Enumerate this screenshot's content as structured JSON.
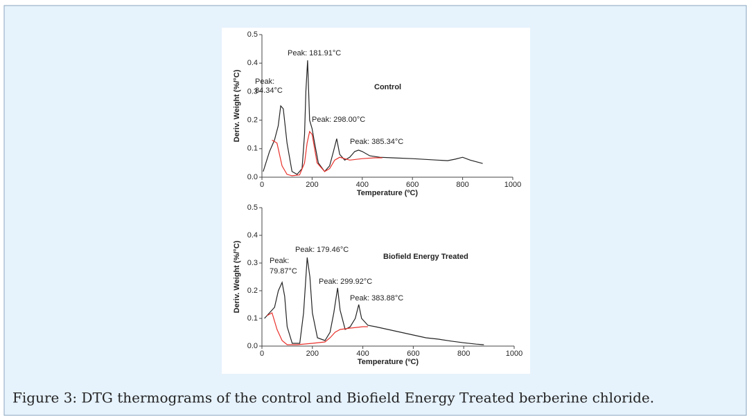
{
  "chart_data": [
    {
      "type": "line",
      "label": "Control",
      "x_label": "Temperature (ºC)",
      "y_label": "Deriv. Weight (%/°C)",
      "xlim": [
        0,
        1000
      ],
      "xticks": [
        0,
        200,
        400,
        600,
        800,
        1000
      ],
      "ylim": [
        0,
        0.5
      ],
      "yticks": [
        {
          "value": 0,
          "label": "0.0"
        },
        0.1,
        0.2,
        0.3,
        0.4,
        0.5
      ],
      "annotations": [
        [
          "Peak:",
          "84.34°C"
        ],
        [
          "Peak: 181.91°C"
        ],
        [
          "Peak: 298.00°C"
        ],
        [
          "Peak: 385.34°C"
        ]
      ],
      "series": [
        {
          "color": "#222222",
          "x": [
            5,
            30,
            50,
            65,
            75,
            85,
            100,
            120,
            140,
            160,
            170,
            175,
            182,
            190,
            200,
            210,
            225,
            250,
            270,
            285,
            298,
            310,
            330,
            350,
            370,
            385,
            400,
            430,
            470,
            520,
            600,
            700,
            740,
            770,
            800,
            830,
            880
          ],
          "values": [
            0.02,
            0.09,
            0.13,
            0.18,
            0.25,
            0.24,
            0.12,
            0.02,
            0.01,
            0.03,
            0.15,
            0.3,
            0.41,
            0.2,
            0.17,
            0.12,
            0.05,
            0.02,
            0.04,
            0.09,
            0.135,
            0.08,
            0.06,
            0.07,
            0.09,
            0.095,
            0.09,
            0.075,
            0.07,
            0.068,
            0.065,
            0.06,
            0.058,
            0.063,
            0.07,
            0.06,
            0.048
          ]
        },
        {
          "color": "#e8302a",
          "x": [
            40,
            60,
            80,
            100,
            120,
            150,
            170,
            180,
            190,
            200,
            220,
            250,
            270,
            290,
            310,
            350,
            400,
            450,
            480
          ],
          "values": [
            0.13,
            0.12,
            0.04,
            0.01,
            0.005,
            0.008,
            0.05,
            0.12,
            0.16,
            0.15,
            0.05,
            0.02,
            0.03,
            0.06,
            0.07,
            0.06,
            0.065,
            0.068,
            0.068
          ]
        }
      ]
    },
    {
      "type": "line",
      "label": "Biofield Energy Treated",
      "x_label": "Temperature (ºC)",
      "y_label": "Deriv. Weight (%/°C)",
      "xlim": [
        0,
        1000
      ],
      "xticks": [
        0,
        200,
        400,
        600,
        800,
        1000
      ],
      "ylim": [
        0,
        0.5
      ],
      "yticks": [
        {
          "value": 0,
          "label": "0.0"
        },
        0.1,
        0.2,
        0.3,
        0.4,
        0.5
      ],
      "annotations": [
        [
          "Peak:",
          "79.87°C"
        ],
        [
          "Peak: 179.46°C"
        ],
        [
          "Peak: 299.92°C"
        ],
        [
          "Peak: 383.88°C"
        ]
      ],
      "series": [
        {
          "color": "#222222",
          "x": [
            10,
            30,
            50,
            65,
            79.87,
            90,
            100,
            120,
            150,
            165,
            179.46,
            190,
            200,
            220,
            250,
            270,
            285,
            299.92,
            310,
            330,
            350,
            370,
            383.88,
            395,
            420,
            450,
            500,
            550,
            600,
            650,
            700,
            750,
            800,
            850,
            880
          ],
          "values": [
            0.1,
            0.12,
            0.14,
            0.2,
            0.23,
            0.18,
            0.07,
            0.01,
            0.01,
            0.12,
            0.32,
            0.25,
            0.12,
            0.03,
            0.02,
            0.05,
            0.12,
            0.21,
            0.13,
            0.06,
            0.07,
            0.1,
            0.15,
            0.1,
            0.075,
            0.07,
            0.06,
            0.05,
            0.04,
            0.03,
            0.025,
            0.018,
            0.012,
            0.007,
            0.005
          ]
        },
        {
          "color": "#e8302a",
          "x": [
            20,
            40,
            60,
            80,
            100,
            140,
            200,
            250,
            270,
            290,
            310,
            350,
            400,
            420
          ],
          "values": [
            0.11,
            0.12,
            0.06,
            0.02,
            0.005,
            0.005,
            0.01,
            0.015,
            0.03,
            0.05,
            0.06,
            0.065,
            0.07,
            0.07
          ]
        }
      ]
    }
  ],
  "caption": "Figure 3: DTG thermograms of the control and Biofield Energy Treated berberine chloride."
}
